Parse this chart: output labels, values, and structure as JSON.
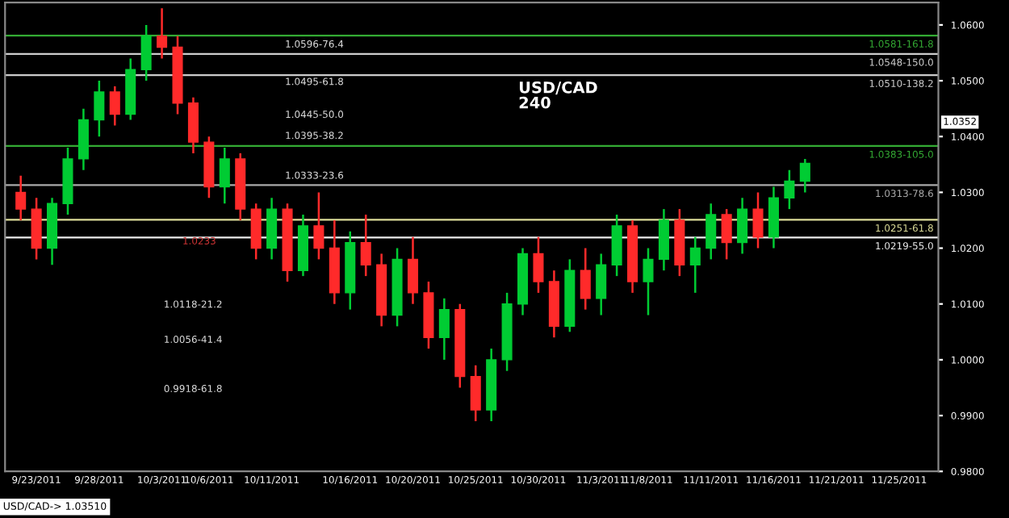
{
  "chart_data": {
    "type": "candlestick",
    "title": "USD/CAD",
    "subtitle": "240",
    "categories": [
      null,
      "9/23/2011",
      null,
      null,
      null,
      "9/28/2011",
      null,
      null,
      null,
      "10/3/2011",
      null,
      null,
      "10/6/2011",
      null,
      null,
      null,
      "10/11/2011",
      null,
      null,
      null,
      null,
      "10/16/2011",
      null,
      null,
      null,
      "10/20/2011",
      null,
      null,
      null,
      "10/25/2011",
      null,
      null,
      null,
      "10/30/2011",
      null,
      null,
      null,
      "11/3/2011",
      null,
      null,
      "11/8/2011",
      null,
      null,
      null,
      "11/11/2011",
      null,
      null,
      null,
      "11/16/2011",
      null,
      null,
      null,
      "11/21/2011",
      null,
      null,
      null,
      "11/25/2011",
      null,
      null
    ],
    "ohlc": [
      [
        1.03,
        1.033,
        1.025,
        1.027
      ],
      [
        1.027,
        1.029,
        1.018,
        1.02
      ],
      [
        1.02,
        1.029,
        1.017,
        1.028
      ],
      [
        1.028,
        1.038,
        1.026,
        1.036
      ],
      [
        1.036,
        1.045,
        1.034,
        1.043
      ],
      [
        1.043,
        1.05,
        1.04,
        1.048
      ],
      [
        1.048,
        1.049,
        1.042,
        1.044
      ],
      [
        1.044,
        1.054,
        1.043,
        1.052
      ],
      [
        1.052,
        1.06,
        1.05,
        1.058
      ],
      [
        1.058,
        1.063,
        1.054,
        1.056
      ],
      [
        1.056,
        1.058,
        1.044,
        1.046
      ],
      [
        1.046,
        1.047,
        1.037,
        1.039
      ],
      [
        1.039,
        1.04,
        1.029,
        1.031
      ],
      [
        1.031,
        1.038,
        1.028,
        1.036
      ],
      [
        1.036,
        1.037,
        1.025,
        1.027
      ],
      [
        1.027,
        1.028,
        1.018,
        1.02
      ],
      [
        1.02,
        1.029,
        1.018,
        1.027
      ],
      [
        1.027,
        1.028,
        1.014,
        1.016
      ],
      [
        1.016,
        1.026,
        1.015,
        1.024
      ],
      [
        1.024,
        1.03,
        1.018,
        1.02
      ],
      [
        1.02,
        1.025,
        1.01,
        1.012
      ],
      [
        1.012,
        1.023,
        1.009,
        1.021
      ],
      [
        1.021,
        1.026,
        1.015,
        1.017
      ],
      [
        1.017,
        1.019,
        1.006,
        1.008
      ],
      [
        1.008,
        1.02,
        1.006,
        1.018
      ],
      [
        1.018,
        1.022,
        1.01,
        1.012
      ],
      [
        1.012,
        1.014,
        1.002,
        1.004
      ],
      [
        1.004,
        1.011,
        1.0,
        1.009
      ],
      [
        1.009,
        1.01,
        0.995,
        0.997
      ],
      [
        0.997,
        0.999,
        0.989,
        0.991
      ],
      [
        0.991,
        1.002,
        0.989,
        1.0
      ],
      [
        1.0,
        1.012,
        0.998,
        1.01
      ],
      [
        1.01,
        1.02,
        1.008,
        1.019
      ],
      [
        1.019,
        1.022,
        1.012,
        1.014
      ],
      [
        1.014,
        1.016,
        1.004,
        1.006
      ],
      [
        1.006,
        1.018,
        1.005,
        1.016
      ],
      [
        1.016,
        1.02,
        1.009,
        1.011
      ],
      [
        1.011,
        1.019,
        1.008,
        1.017
      ],
      [
        1.017,
        1.026,
        1.015,
        1.024
      ],
      [
        1.024,
        1.025,
        1.012,
        1.014
      ],
      [
        1.014,
        1.02,
        1.008,
        1.018
      ],
      [
        1.018,
        1.027,
        1.016,
        1.025
      ],
      [
        1.025,
        1.027,
        1.015,
        1.017
      ],
      [
        1.017,
        1.022,
        1.012,
        1.02
      ],
      [
        1.02,
        1.028,
        1.018,
        1.026
      ],
      [
        1.026,
        1.027,
        1.018,
        1.021
      ],
      [
        1.021,
        1.029,
        1.019,
        1.027
      ],
      [
        1.027,
        1.03,
        1.02,
        1.022
      ],
      [
        1.022,
        1.031,
        1.02,
        1.029
      ],
      [
        1.029,
        1.034,
        1.027,
        1.032
      ],
      [
        1.032,
        1.036,
        1.03,
        1.0352
      ],
      null,
      null,
      null,
      null,
      null,
      null,
      null,
      null
    ],
    "ylim": [
      0.98,
      1.064
    ],
    "yticks": [
      {
        "value": 0.98,
        "label": "0.9800"
      },
      {
        "value": 0.99,
        "label": "0.9900"
      },
      {
        "value": 1.0,
        "label": "1.0000"
      },
      {
        "value": 1.01,
        "label": "1.0100"
      },
      {
        "value": 1.02,
        "label": "1.0200"
      },
      {
        "value": 1.03,
        "label": "1.0300"
      },
      {
        "value": 1.04,
        "label": "1.0400"
      },
      {
        "value": 1.05,
        "label": "1.0500"
      },
      {
        "value": 1.06,
        "label": "1.0600"
      }
    ],
    "ref_lines": [
      {
        "axis": "y",
        "value": 1.0581,
        "label": "1.0581-161.8",
        "color": "#33aa33"
      },
      {
        "axis": "y",
        "value": 1.0548,
        "label": "1.0548-150.0",
        "color": "#cccccc"
      },
      {
        "axis": "y",
        "value": 1.051,
        "label": "1.0510-138.2",
        "color": "#cccccc"
      },
      {
        "axis": "y",
        "value": 1.0383,
        "label": "1.0383-105.0",
        "color": "#33aa33"
      },
      {
        "axis": "y",
        "value": 1.0313,
        "label": "1.0313-78.6",
        "color": "#aaaaaa"
      },
      {
        "axis": "y",
        "value": 1.0251,
        "label": "1.0251-61.8",
        "color": "#dddd99"
      },
      {
        "axis": "y",
        "value": 1.0219,
        "label": "1.0219-55.0",
        "color": "#eeeeee"
      }
    ],
    "annotations": [
      "1.0596-76.4",
      "1.0495-61.8",
      "1.0445-50.0",
      "1.0395-38.2",
      "1.0333-23.6",
      "1.0118-21.2",
      "1.0056-41.4",
      "0.9918-61.8",
      "1.0233",
      "1.0352",
      "USD/CAD-> 1.03510"
    ]
  }
}
